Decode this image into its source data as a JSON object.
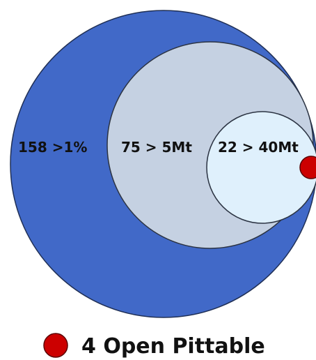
{
  "diagram": {
    "circles": [
      {
        "label": "158 >1%",
        "fill": "#4169c8"
      },
      {
        "label": "75 > 5Mt",
        "fill": "#c5d1e2"
      },
      {
        "label": "22 > 40Mt",
        "fill": "#dff0fc"
      }
    ],
    "marker": {
      "fill": "#cc0000"
    },
    "legend": {
      "label": "4 Open Pittable",
      "marker_fill": "#cc0000"
    }
  }
}
